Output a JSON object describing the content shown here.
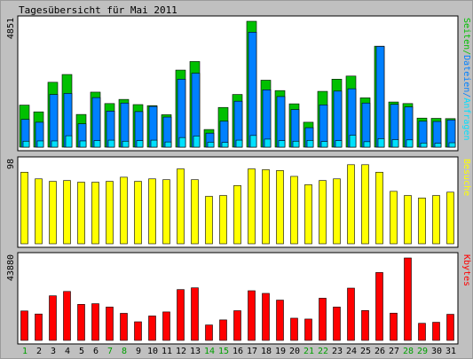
{
  "title": "Tagesübersicht für Mai 2011",
  "colors": {
    "background": "#c0c0c0",
    "panel": "#ffffff",
    "border": "#000000",
    "seiten": "#00c000",
    "dateien": "#0080ff",
    "anfragen": "#00e0ff",
    "besuche": "#ffff00",
    "kbytes": "#ff0000",
    "weekend_label": "#00a000"
  },
  "chart_data": [
    {
      "type": "bar",
      "categories": [
        "1",
        "2",
        "3",
        "4",
        "5",
        "6",
        "7",
        "8",
        "9",
        "10",
        "11",
        "12",
        "13",
        "14",
        "15",
        "16",
        "17",
        "18",
        "19",
        "20",
        "21",
        "22",
        "23",
        "24",
        "25",
        "26",
        "27",
        "28",
        "29",
        "30",
        "31"
      ],
      "weekend_days": [
        "1",
        "7",
        "8",
        "14",
        "15",
        "21",
        "22",
        "28",
        "29"
      ],
      "ymax_label": "4851",
      "right_labels": [
        "Seiten",
        "Dateien",
        "Anfragen"
      ],
      "ylim": [
        0,
        4851
      ],
      "series": [
        {
          "name": "Anfragen",
          "values": [
            1620,
            1360,
            2500,
            2800,
            1260,
            2120,
            1680,
            1840,
            1640,
            1600,
            1250,
            2970,
            3300,
            680,
            1530,
            2030,
            4851,
            2580,
            2180,
            1670,
            960,
            2150,
            2620,
            2740,
            1900,
            3890,
            1740,
            1680,
            1120,
            1110,
            1100
          ]
        },
        {
          "name": "Dateien",
          "values": [
            1070,
            960,
            2030,
            2070,
            900,
            1910,
            1390,
            1700,
            1370,
            1570,
            1160,
            2620,
            2850,
            540,
            1000,
            1770,
            4430,
            2210,
            1950,
            1450,
            750,
            1630,
            2160,
            2250,
            1700,
            3880,
            1650,
            1550,
            1000,
            990,
            1050
          ]
        },
        {
          "name": "Seiten",
          "values": [
            230,
            240,
            240,
            440,
            240,
            250,
            270,
            230,
            250,
            270,
            200,
            370,
            430,
            190,
            180,
            270,
            450,
            310,
            250,
            230,
            260,
            220,
            250,
            460,
            210,
            330,
            290,
            280,
            160,
            150,
            170
          ]
        }
      ]
    },
    {
      "type": "bar",
      "categories": [
        "1",
        "2",
        "3",
        "4",
        "5",
        "6",
        "7",
        "8",
        "9",
        "10",
        "11",
        "12",
        "13",
        "14",
        "15",
        "16",
        "17",
        "18",
        "19",
        "20",
        "21",
        "22",
        "23",
        "24",
        "25",
        "26",
        "27",
        "28",
        "29",
        "30",
        "31"
      ],
      "ymax_label": "98",
      "right_labels": [
        "Besuche"
      ],
      "ylim": [
        0,
        98
      ],
      "series": [
        {
          "name": "Besuche",
          "values": [
            86,
            78,
            75,
            76,
            74,
            74,
            75,
            80,
            75,
            78,
            77,
            90,
            77,
            57,
            58,
            70,
            90,
            89,
            88,
            81,
            71,
            76,
            78,
            95,
            95,
            86,
            63,
            58,
            55,
            58,
            62
          ]
        }
      ]
    },
    {
      "type": "bar",
      "categories": [
        "1",
        "2",
        "3",
        "4",
        "5",
        "6",
        "7",
        "8",
        "9",
        "10",
        "11",
        "12",
        "13",
        "14",
        "15",
        "16",
        "17",
        "18",
        "19",
        "20",
        "21",
        "22",
        "23",
        "24",
        "25",
        "26",
        "27",
        "28",
        "29",
        "30",
        "31"
      ],
      "ymax_label": "43880",
      "right_labels": [
        "Kbytes"
      ],
      "ylim": [
        0,
        43880
      ],
      "series": [
        {
          "name": "Kbytes",
          "values": [
            15670,
            14050,
            23740,
            26050,
            19180,
            19540,
            17750,
            14410,
            9900,
            13000,
            15150,
            27060,
            27990,
            8210,
            10910,
            15810,
            26430,
            25020,
            21450,
            11820,
            11360,
            22460,
            17750,
            27830,
            15900,
            36140,
            14510,
            43880,
            9100,
            9650,
            13900
          ]
        }
      ]
    }
  ]
}
